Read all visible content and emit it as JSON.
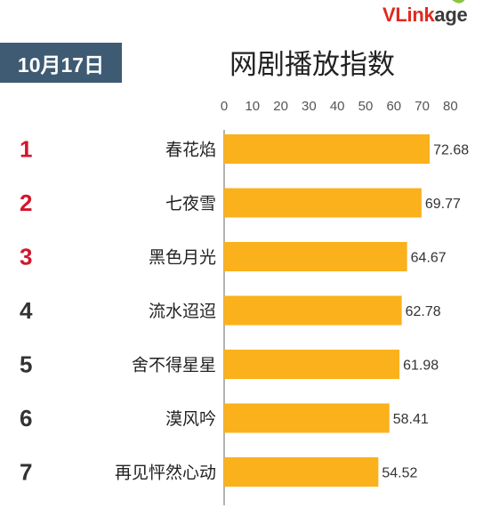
{
  "logo": {
    "part1": "VLink",
    "part2": "age"
  },
  "date_label": "10月17日",
  "title": "网剧播放指数",
  "colors": {
    "bar": "#fbb11c",
    "rank_top": "#d3162c",
    "rank_other": "#333333",
    "badge": "#3f5b74"
  },
  "chart_data": {
    "type": "bar",
    "orientation": "horizontal",
    "title": "网剧播放指数",
    "categories": [
      "春花焰",
      "七夜雪",
      "黑色月光",
      "流水迢迢",
      "舍不得星星",
      "漠风吟",
      "再见怦然心动"
    ],
    "ranks": [
      "1",
      "2",
      "3",
      "4",
      "5",
      "6",
      "7"
    ],
    "values": [
      72.68,
      69.77,
      64.67,
      62.78,
      61.98,
      58.41,
      54.52
    ],
    "value_labels": [
      "72.68",
      "69.77",
      "64.67",
      "62.78",
      "61.98",
      "58.41",
      "54.52"
    ],
    "xlim": [
      0,
      80
    ],
    "xticks": [
      "0",
      "10",
      "20",
      "30",
      "40",
      "50",
      "60",
      "70",
      "80"
    ],
    "axis_position": "top",
    "grid": false,
    "legend": "none"
  }
}
